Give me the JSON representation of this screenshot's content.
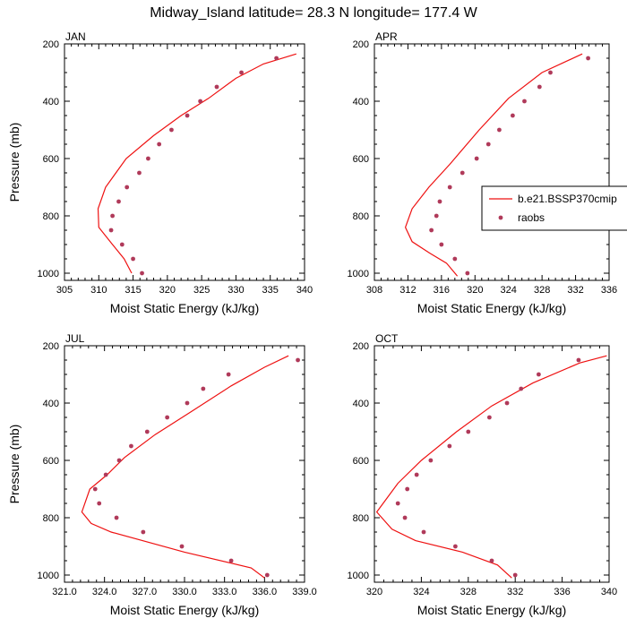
{
  "figure": {
    "title": "Midway_Island  latitude= 28.3 N longitude= 177.4 W",
    "model_color": "#ee1111",
    "obs_color": "#b03a5a",
    "legend": {
      "model_label": "b.e21.BSSP370cmip",
      "obs_label": "raobs",
      "placement": "right of APR panel"
    }
  },
  "chart_data": [
    {
      "type": "line",
      "title": "JAN",
      "xlabel": "Moist Static Energy (kJ/kg)",
      "ylabel": "Pressure (mb)",
      "xlim": [
        305,
        340
      ],
      "ylim": [
        1025,
        200
      ],
      "xticks": [
        305,
        310,
        315,
        320,
        325,
        330,
        335,
        340
      ],
      "xtick_labels": [
        "305",
        "310",
        "315",
        "320",
        "325",
        "330",
        "335",
        "340"
      ],
      "yticks": [
        200,
        400,
        600,
        800,
        1000
      ],
      "ytick_labels": [
        "200",
        "400",
        "600",
        "800",
        "1000"
      ],
      "series": [
        {
          "name": "b.e21.BSSP370cmip",
          "kind": "line",
          "x": [
            338.8,
            334.0,
            330.0,
            326.0,
            322.0,
            318.0,
            314.0,
            311.0,
            309.9,
            310.0,
            312.0,
            313.7,
            314.8
          ],
          "y": [
            235,
            270,
            320,
            390,
            450,
            520,
            600,
            700,
            775,
            840,
            900,
            950,
            1000
          ]
        },
        {
          "name": "raobs",
          "kind": "scatter",
          "x": [
            335.9,
            330.8,
            327.2,
            324.8,
            322.9,
            320.6,
            318.8,
            317.2,
            315.9,
            314.1,
            312.9,
            312.0,
            311.8,
            313.4,
            315.0,
            316.3
          ],
          "y": [
            250,
            300,
            350,
            400,
            450,
            500,
            550,
            600,
            650,
            700,
            750,
            800,
            850,
            900,
            950,
            1000
          ]
        }
      ]
    },
    {
      "type": "line",
      "title": "APR",
      "xlabel": "Moist Static Energy (kJ/kg)",
      "ylabel": "",
      "xlim": [
        308,
        336
      ],
      "ylim": [
        1025,
        200
      ],
      "xticks": [
        308,
        312,
        316,
        320,
        324,
        328,
        332,
        336
      ],
      "xtick_labels": [
        "308",
        "312",
        "316",
        "320",
        "324",
        "328",
        "332",
        "336"
      ],
      "yticks": [
        200,
        400,
        600,
        800,
        1000
      ],
      "ytick_labels": [
        "200",
        "400",
        "600",
        "800",
        "1000"
      ],
      "series": [
        {
          "name": "b.e21.BSSP370cmip",
          "kind": "line",
          "x": [
            332.8,
            328.0,
            324.0,
            320.5,
            317.0,
            314.5,
            312.5,
            311.7,
            312.5,
            314.6,
            316.6,
            317.9
          ],
          "y": [
            235,
            300,
            390,
            500,
            620,
            700,
            775,
            840,
            890,
            930,
            965,
            1010
          ]
        },
        {
          "name": "raobs",
          "kind": "scatter",
          "x": [
            333.5,
            329.0,
            327.7,
            325.9,
            324.5,
            322.9,
            321.6,
            320.2,
            318.5,
            317.0,
            315.8,
            315.4,
            314.8,
            316.0,
            317.6,
            319.1
          ],
          "y": [
            250,
            300,
            350,
            400,
            450,
            500,
            550,
            600,
            650,
            700,
            750,
            800,
            850,
            900,
            950,
            1000
          ]
        }
      ]
    },
    {
      "type": "line",
      "title": "JUL",
      "xlabel": "Moist Static Energy (kJ/kg)",
      "ylabel": "Pressure (mb)",
      "xlim": [
        321,
        339
      ],
      "ylim": [
        1025,
        200
      ],
      "xticks": [
        321,
        324,
        327,
        330,
        333,
        336,
        339
      ],
      "xtick_labels": [
        "321.0",
        "324.0",
        "327.0",
        "330.0",
        "333.0",
        "336.0",
        "339.0"
      ],
      "yticks": [
        200,
        400,
        600,
        800,
        1000
      ],
      "ytick_labels": [
        "200",
        "400",
        "600",
        "800",
        "1000"
      ],
      "series": [
        {
          "name": "b.e21.BSSP370cmip",
          "kind": "line",
          "x": [
            337.8,
            336.0,
            333.5,
            330.5,
            327.8,
            325.5,
            324.2,
            322.9,
            322.3,
            323.0,
            324.5,
            330.0,
            335.0,
            336.0
          ],
          "y": [
            235,
            275,
            340,
            430,
            510,
            590,
            650,
            700,
            780,
            820,
            850,
            920,
            975,
            1010
          ]
        },
        {
          "name": "raobs",
          "kind": "scatter",
          "x": [
            338.5,
            333.3,
            331.4,
            330.2,
            328.7,
            327.2,
            326.0,
            325.1,
            324.1,
            323.3,
            323.6,
            324.9,
            326.9,
            329.8,
            333.5,
            336.2
          ],
          "y": [
            250,
            300,
            350,
            400,
            450,
            500,
            550,
            600,
            650,
            700,
            750,
            800,
            850,
            900,
            950,
            1000
          ]
        }
      ]
    },
    {
      "type": "line",
      "title": "OCT",
      "xlabel": "Moist Static Energy (kJ/kg)",
      "ylabel": "",
      "xlim": [
        320,
        340
      ],
      "ylim": [
        1025,
        200
      ],
      "xticks": [
        320,
        324,
        328,
        332,
        336,
        340
      ],
      "xtick_labels": [
        "320",
        "324",
        "328",
        "332",
        "336",
        "340"
      ],
      "yticks": [
        200,
        400,
        600,
        800,
        1000
      ],
      "ytick_labels": [
        "200",
        "400",
        "600",
        "800",
        "1000"
      ],
      "series": [
        {
          "name": "b.e21.BSSP370cmip",
          "kind": "line",
          "x": [
            339.8,
            337.5,
            333.5,
            330.0,
            327.0,
            324.0,
            322.0,
            320.2,
            321.5,
            323.5,
            327.5,
            330.5,
            331.7
          ],
          "y": [
            235,
            260,
            330,
            410,
            500,
            600,
            680,
            780,
            840,
            880,
            920,
            965,
            1010
          ]
        },
        {
          "name": "raobs",
          "kind": "scatter",
          "x": [
            337.4,
            334.0,
            332.5,
            331.3,
            329.8,
            328.0,
            326.4,
            324.8,
            323.6,
            322.8,
            322.0,
            322.6,
            324.2,
            326.9,
            330.0,
            332.0
          ],
          "y": [
            250,
            300,
            350,
            400,
            450,
            500,
            550,
            600,
            650,
            700,
            750,
            800,
            850,
            900,
            950,
            1000
          ]
        }
      ]
    }
  ]
}
